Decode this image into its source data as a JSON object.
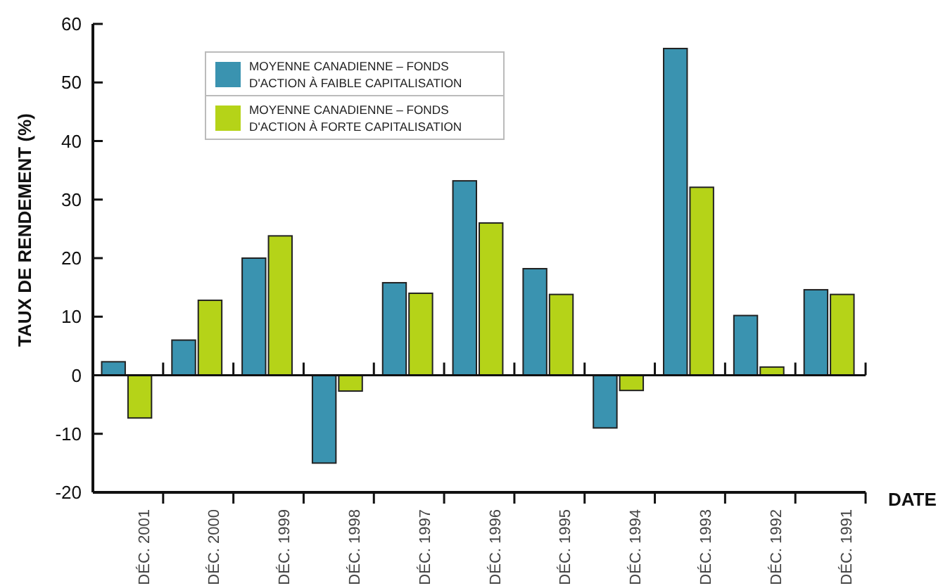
{
  "chart_data": {
    "type": "bar",
    "ylabel": "TAUX DE RENDEMENT (%)",
    "xlabel": "DATE",
    "categories": [
      "DÉC. 2001",
      "DÉC. 2000",
      "DÉC. 1999",
      "DÉC. 1998",
      "DÉC. 1997",
      "DÉC. 1996",
      "DÉC. 1995",
      "DÉC. 1994",
      "DÉC. 1993",
      "DÉC. 1992",
      "DÉC. 1991"
    ],
    "series": [
      {
        "name": "MOYENNE CANADIENNE – FONDS D'ACTION À FAIBLE CAPITALISATION",
        "color": "#3a93b0",
        "values": [
          2.3,
          6.0,
          20.0,
          -15.0,
          15.8,
          33.2,
          18.2,
          -9.0,
          55.8,
          10.2,
          14.6
        ]
      },
      {
        "name": "MOYENNE CANADIENNE – FONDS D'ACTION À FORTE CAPITALISATION",
        "color": "#b5d318",
        "values": [
          -7.3,
          12.8,
          23.8,
          -2.7,
          14.0,
          26.0,
          13.8,
          -2.6,
          32.1,
          1.4,
          13.8
        ]
      }
    ],
    "ylim": [
      -20,
      60
    ],
    "yticks": [
      -20,
      -10,
      0,
      10,
      20,
      30,
      40,
      50,
      60
    ],
    "grid": false,
    "ref_lines": [
      {
        "axis": "y",
        "value": 0,
        "color": "#111111"
      }
    ],
    "legend": "top left"
  }
}
